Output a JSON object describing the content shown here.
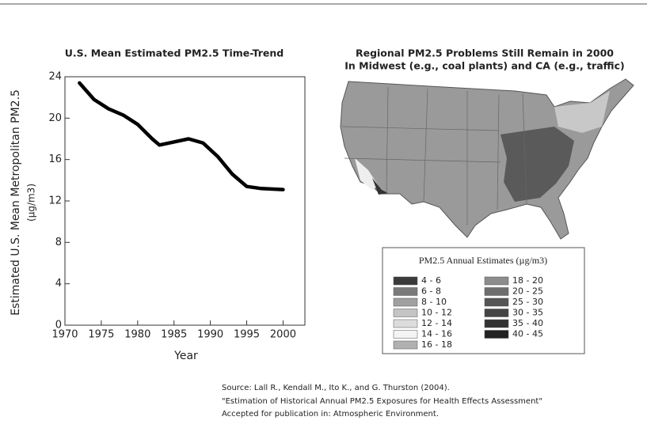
{
  "chart_data": {
    "type": "line",
    "title": "U.S. Mean Estimated PM2.5 Time-Trend",
    "xlabel": "Year",
    "ylabel": "Estimated U.S. Mean Metropolitan PM2.5",
    "ylabel_unit": "(µg/m3)",
    "x": [
      1972,
      1974,
      1976,
      1978,
      1980,
      1982,
      1983,
      1985,
      1987,
      1989,
      1991,
      1993,
      1995,
      1997,
      2000
    ],
    "values": [
      23.4,
      21.8,
      20.9,
      20.3,
      19.4,
      18.0,
      17.4,
      17.7,
      18.0,
      17.6,
      16.3,
      14.6,
      13.4,
      13.2,
      13.1
    ],
    "color": "#000000",
    "xlim": [
      1970,
      2003
    ],
    "xticks": [
      1970,
      1975,
      1980,
      1985,
      1990,
      1995,
      2000
    ],
    "ylim": [
      0,
      24
    ],
    "yticks": [
      0,
      4,
      8,
      12,
      16,
      20,
      24
    ]
  },
  "map": {
    "title": [
      "Regional PM2.5 Problems Still Remain in 2000",
      "In Midwest (e.g., coal plants) and CA (e.g., traffic)"
    ],
    "legend_title": "PM2.5 Annual Estimates (µg/m3)",
    "legend": [
      "4 - 6",
      "6 - 8",
      "8 - 10",
      "10 - 12",
      "12 - 14",
      "14 - 16",
      "16 - 18",
      "18 - 20",
      "20 - 25",
      "25 - 30",
      "30 - 35",
      "35 - 40",
      "40 - 45"
    ],
    "colors": [
      "#3a3a3a",
      "#7a7a7a",
      "#a0a0a0",
      "#c4c4c4",
      "#dcdcdc",
      "#f4f4f4",
      "#b0b0b0",
      "#8c8c8c",
      "#6e6e6e",
      "#555555",
      "#444444",
      "#333333",
      "#222222"
    ]
  },
  "source": [
    "Source: Lall R., Kendall M., Ito K., and G. Thurston (2004).",
    "\"Estimation of Historical Annual PM2.5 Exposures for Health Effects Assessment\"",
    "Accepted for publication in: Atmospheric Environment."
  ]
}
